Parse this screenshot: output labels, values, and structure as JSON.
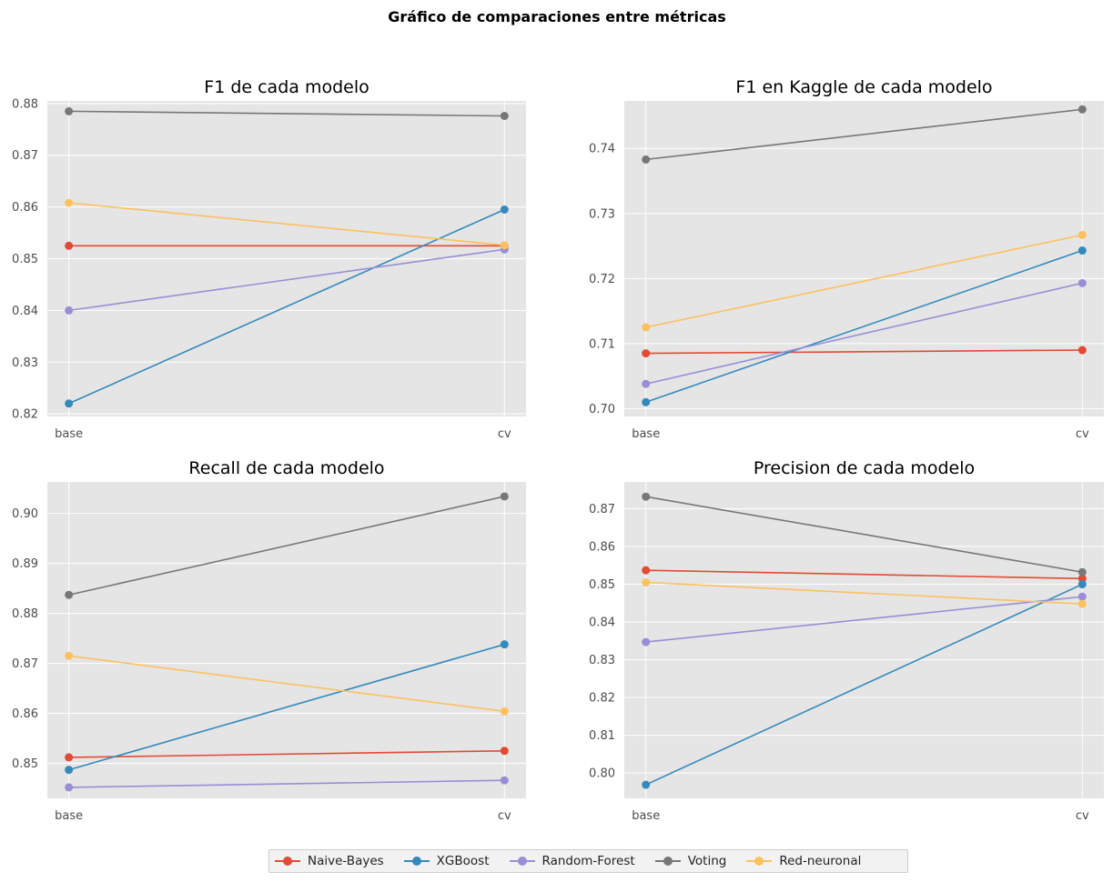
{
  "figure": {
    "title": "Gráfico de comparaciones entre métricas"
  },
  "legend": [
    {
      "name": "Naive-Bayes",
      "color": "#E24A33"
    },
    {
      "name": "XGBoost",
      "color": "#348ABD"
    },
    {
      "name": "Random-Forest",
      "color": "#988ED5"
    },
    {
      "name": "Voting",
      "color": "#777777"
    },
    {
      "name": "Red-neuronal",
      "color": "#FBC15E"
    }
  ],
  "chart_data": [
    {
      "type": "line",
      "title": "F1 de cada modelo",
      "categories": [
        "base",
        "cv"
      ],
      "ylim": [
        0.8195,
        0.8805
      ],
      "yticks": [
        0.82,
        0.83,
        0.84,
        0.85,
        0.86,
        0.87,
        0.88
      ],
      "yticklabels": [
        "0.82",
        "0.83",
        "0.84",
        "0.85",
        "0.86",
        "0.87",
        "0.88"
      ],
      "grid": true,
      "series": [
        {
          "name": "Naive-Bayes",
          "values": [
            0.8525,
            0.8525
          ]
        },
        {
          "name": "XGBoost",
          "values": [
            0.822,
            0.8595
          ]
        },
        {
          "name": "Random-Forest",
          "values": [
            0.84,
            0.8518
          ]
        },
        {
          "name": "Voting",
          "values": [
            0.8785,
            0.8776
          ]
        },
        {
          "name": "Red-neuronal",
          "values": [
            0.8608,
            0.8526
          ]
        }
      ]
    },
    {
      "type": "line",
      "title": "F1 en Kaggle de cada modelo",
      "categories": [
        "base",
        "cv"
      ],
      "ylim": [
        0.6988,
        0.7473
      ],
      "yticks": [
        0.7,
        0.71,
        0.72,
        0.73,
        0.74
      ],
      "yticklabels": [
        "0.70",
        "0.71",
        "0.72",
        "0.73",
        "0.74"
      ],
      "grid": true,
      "series": [
        {
          "name": "Naive-Bayes",
          "values": [
            0.7085,
            0.709
          ]
        },
        {
          "name": "XGBoost",
          "values": [
            0.701,
            0.7243
          ]
        },
        {
          "name": "Random-Forest",
          "values": [
            0.7038,
            0.7193
          ]
        },
        {
          "name": "Voting",
          "values": [
            0.7383,
            0.746
          ]
        },
        {
          "name": "Red-neuronal",
          "values": [
            0.7125,
            0.7267
          ]
        }
      ]
    },
    {
      "type": "line",
      "title": "Recall de cada modelo",
      "categories": [
        "base",
        "cv"
      ],
      "ylim": [
        0.843,
        0.9063
      ],
      "yticks": [
        0.85,
        0.86,
        0.87,
        0.88,
        0.89,
        0.9
      ],
      "yticklabels": [
        "0.85",
        "0.86",
        "0.87",
        "0.88",
        "0.89",
        "0.90"
      ],
      "grid": true,
      "series": [
        {
          "name": "Naive-Bayes",
          "values": [
            0.8512,
            0.8525
          ]
        },
        {
          "name": "XGBoost",
          "values": [
            0.8487,
            0.8738
          ]
        },
        {
          "name": "Random-Forest",
          "values": [
            0.8452,
            0.8466
          ]
        },
        {
          "name": "Voting",
          "values": [
            0.8837,
            0.9034
          ]
        },
        {
          "name": "Red-neuronal",
          "values": [
            0.8715,
            0.8604
          ]
        }
      ]
    },
    {
      "type": "line",
      "title": "Precision de cada modelo",
      "categories": [
        "base",
        "cv"
      ],
      "ylim": [
        0.7933,
        0.8771
      ],
      "yticks": [
        0.8,
        0.81,
        0.82,
        0.83,
        0.84,
        0.85,
        0.86,
        0.87
      ],
      "yticklabels": [
        "0.80",
        "0.81",
        "0.82",
        "0.83",
        "0.84",
        "0.85",
        "0.86",
        "0.87"
      ],
      "grid": true,
      "series": [
        {
          "name": "Naive-Bayes",
          "values": [
            0.8537,
            0.8515
          ]
        },
        {
          "name": "XGBoost",
          "values": [
            0.7969,
            0.85
          ]
        },
        {
          "name": "Random-Forest",
          "values": [
            0.8347,
            0.8467
          ]
        },
        {
          "name": "Voting",
          "values": [
            0.8732,
            0.8532
          ]
        },
        {
          "name": "Red-neuronal",
          "values": [
            0.8505,
            0.8448
          ]
        }
      ]
    }
  ]
}
